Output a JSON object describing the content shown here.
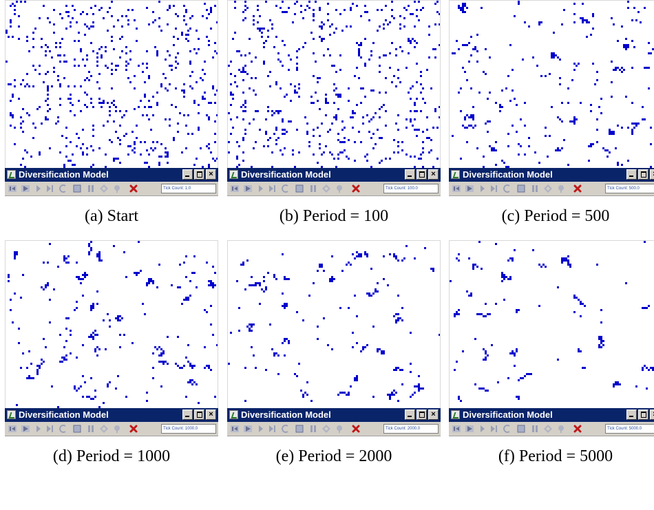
{
  "app_title": "Diversification Model",
  "tick_prefix": "Tick Count: ",
  "colors": {
    "agent": "#0000cc",
    "titlebar": "#0a246a"
  },
  "toolbar_icons": [
    "step-back-icon",
    "play-icon",
    "step-icon",
    "step-forward-icon",
    "reset-icon",
    "setup-icon",
    "pause-icon",
    "options-icon",
    "record-icon",
    "exit-icon"
  ],
  "panels": [
    {
      "caption": "(a) Start",
      "tick_count": "1.0"
    },
    {
      "caption": "(b) Period = 100",
      "tick_count": "100.0"
    },
    {
      "caption": "(c) Period = 500",
      "tick_count": "500.0"
    },
    {
      "caption": "(d) Period = 1000",
      "tick_count": "1000.0"
    },
    {
      "caption": "(e) Period = 2000",
      "tick_count": "2000.0"
    },
    {
      "caption": "(f) Period = 5000",
      "tick_count": "5000.0"
    }
  ]
}
